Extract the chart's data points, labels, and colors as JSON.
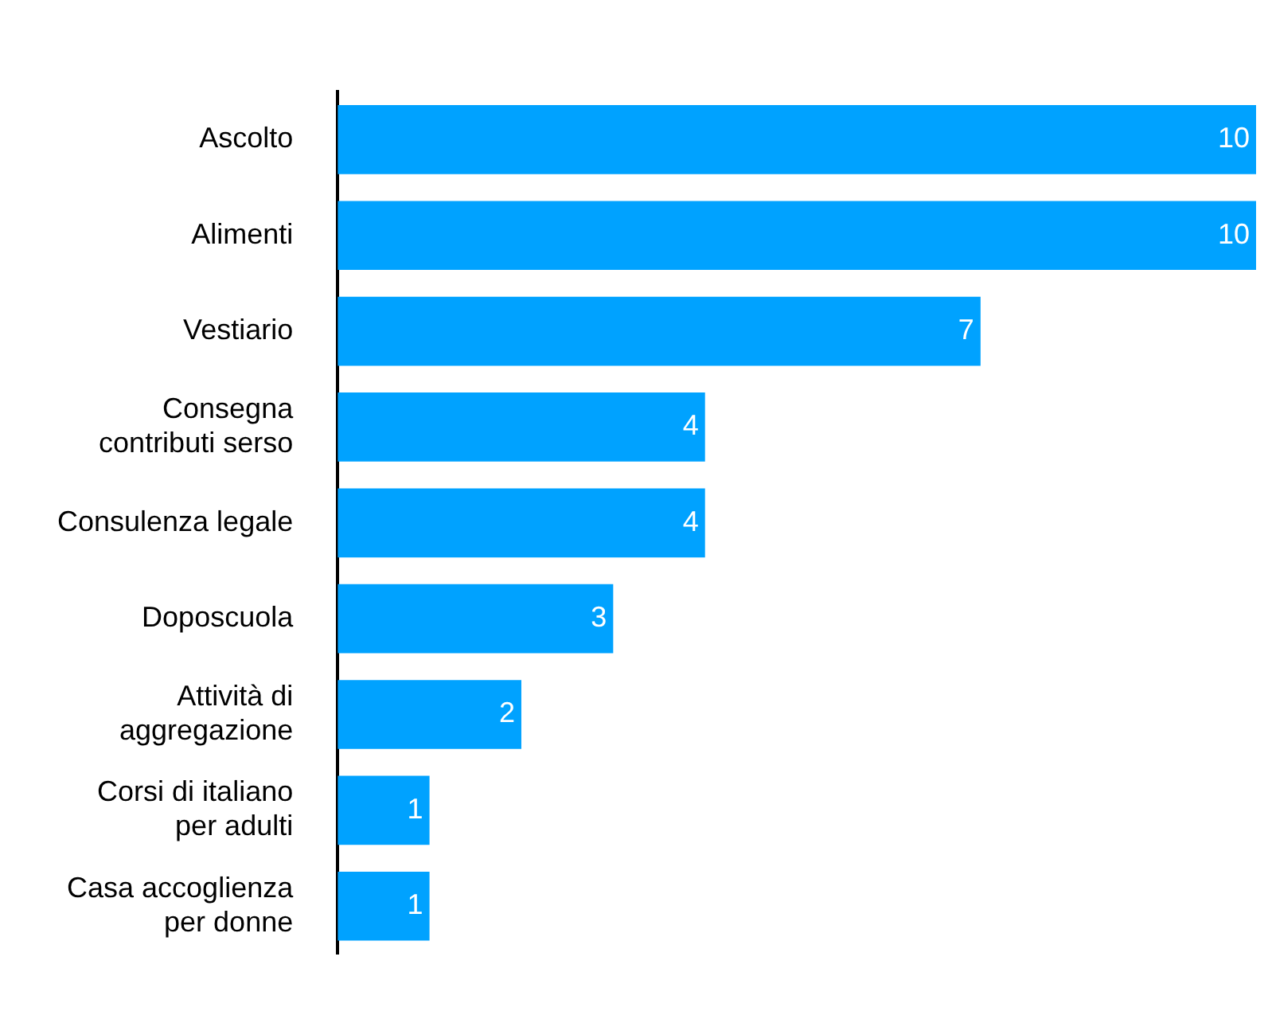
{
  "chart_data": {
    "type": "bar",
    "orientation": "horizontal",
    "categories": [
      "Ascolto",
      "Alimenti",
      "Vestiario",
      "Consegna contributi serso",
      "Consulenza legale",
      "Doposcuola",
      "Attività di aggregazione",
      "Corsi di italiano per adulti",
      "Casa accoglienza per donne"
    ],
    "values": [
      10,
      10,
      7,
      4,
      4,
      3,
      2,
      1,
      1
    ],
    "color": "#00a2ff",
    "data_labels": true,
    "legend": false,
    "tick_labels": "y"
  }
}
